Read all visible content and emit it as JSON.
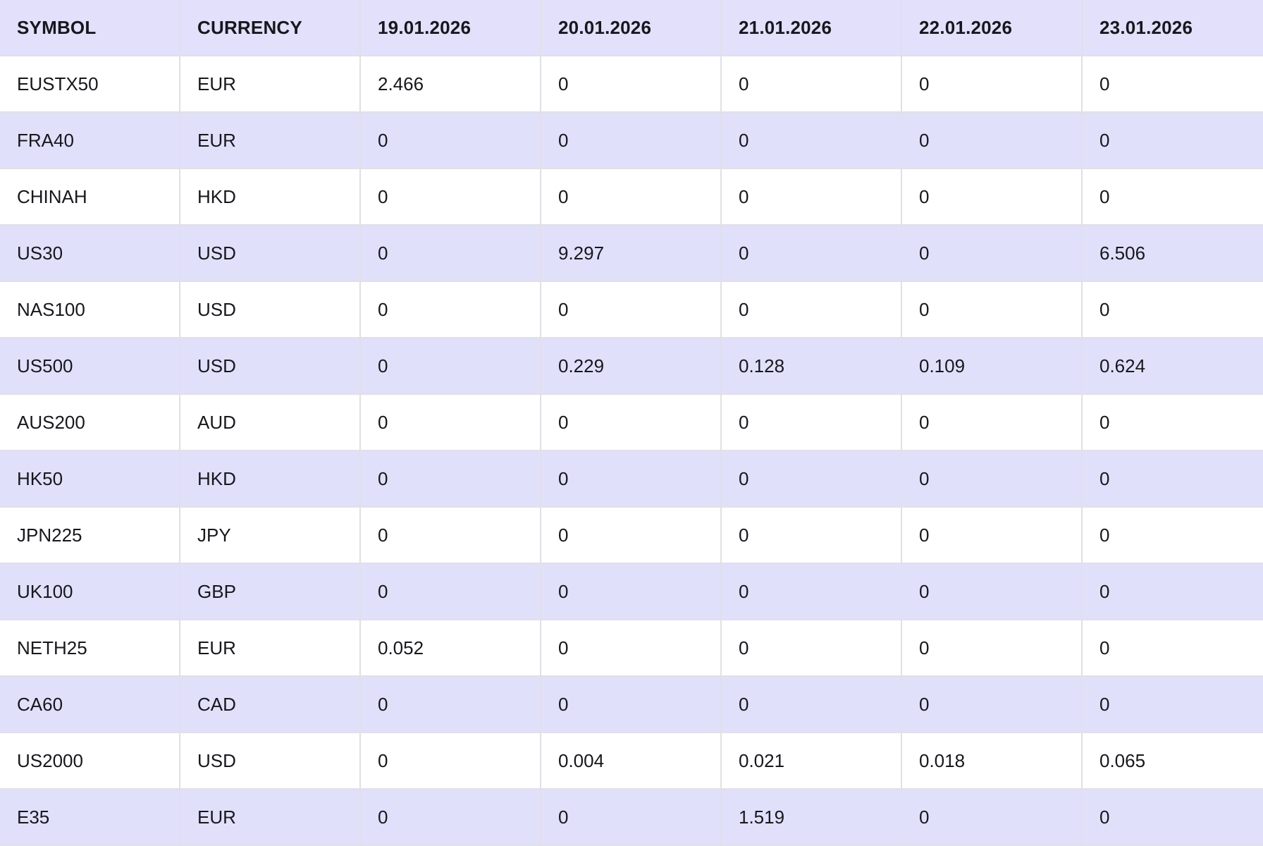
{
  "ui_colors": {
    "header_background": "#e2e0fa",
    "alt_row_background": "#e0e0fb",
    "row_background": "#ffffff",
    "grid_border": "#e0e0e6",
    "text": "#17171c"
  },
  "table": {
    "columns": [
      {
        "key": "symbol",
        "label": "SYMBOL"
      },
      {
        "key": "currency",
        "label": "CURRENCY"
      },
      {
        "key": "d1",
        "label": "19.01.2026"
      },
      {
        "key": "d2",
        "label": "20.01.2026"
      },
      {
        "key": "d3",
        "label": "21.01.2026"
      },
      {
        "key": "d4",
        "label": "22.01.2026"
      },
      {
        "key": "d5",
        "label": "23.01.2026"
      }
    ],
    "rows": [
      {
        "symbol": "EUSTX50",
        "currency": "EUR",
        "values": [
          "2.466",
          "0",
          "0",
          "0",
          "0"
        ]
      },
      {
        "symbol": "FRA40",
        "currency": "EUR",
        "values": [
          "0",
          "0",
          "0",
          "0",
          "0"
        ]
      },
      {
        "symbol": "CHINAH",
        "currency": "HKD",
        "values": [
          "0",
          "0",
          "0",
          "0",
          "0"
        ]
      },
      {
        "symbol": "US30",
        "currency": "USD",
        "values": [
          "0",
          "9.297",
          "0",
          "0",
          "6.506"
        ]
      },
      {
        "symbol": "NAS100",
        "currency": "USD",
        "values": [
          "0",
          "0",
          "0",
          "0",
          "0"
        ]
      },
      {
        "symbol": "US500",
        "currency": "USD",
        "values": [
          "0",
          "0.229",
          "0.128",
          "0.109",
          "0.624"
        ]
      },
      {
        "symbol": "AUS200",
        "currency": "AUD",
        "values": [
          "0",
          "0",
          "0",
          "0",
          "0"
        ]
      },
      {
        "symbol": "HK50",
        "currency": "HKD",
        "values": [
          "0",
          "0",
          "0",
          "0",
          "0"
        ]
      },
      {
        "symbol": "JPN225",
        "currency": "JPY",
        "values": [
          "0",
          "0",
          "0",
          "0",
          "0"
        ]
      },
      {
        "symbol": "UK100",
        "currency": "GBP",
        "values": [
          "0",
          "0",
          "0",
          "0",
          "0"
        ]
      },
      {
        "symbol": "NETH25",
        "currency": "EUR",
        "values": [
          "0.052",
          "0",
          "0",
          "0",
          "0"
        ]
      },
      {
        "symbol": "CA60",
        "currency": "CAD",
        "values": [
          "0",
          "0",
          "0",
          "0",
          "0"
        ]
      },
      {
        "symbol": "US2000",
        "currency": "USD",
        "values": [
          "0",
          "0.004",
          "0.021",
          "0.018",
          "0.065"
        ]
      },
      {
        "symbol": "E35",
        "currency": "EUR",
        "values": [
          "0",
          "0",
          "1.519",
          "0",
          "0"
        ]
      }
    ]
  }
}
